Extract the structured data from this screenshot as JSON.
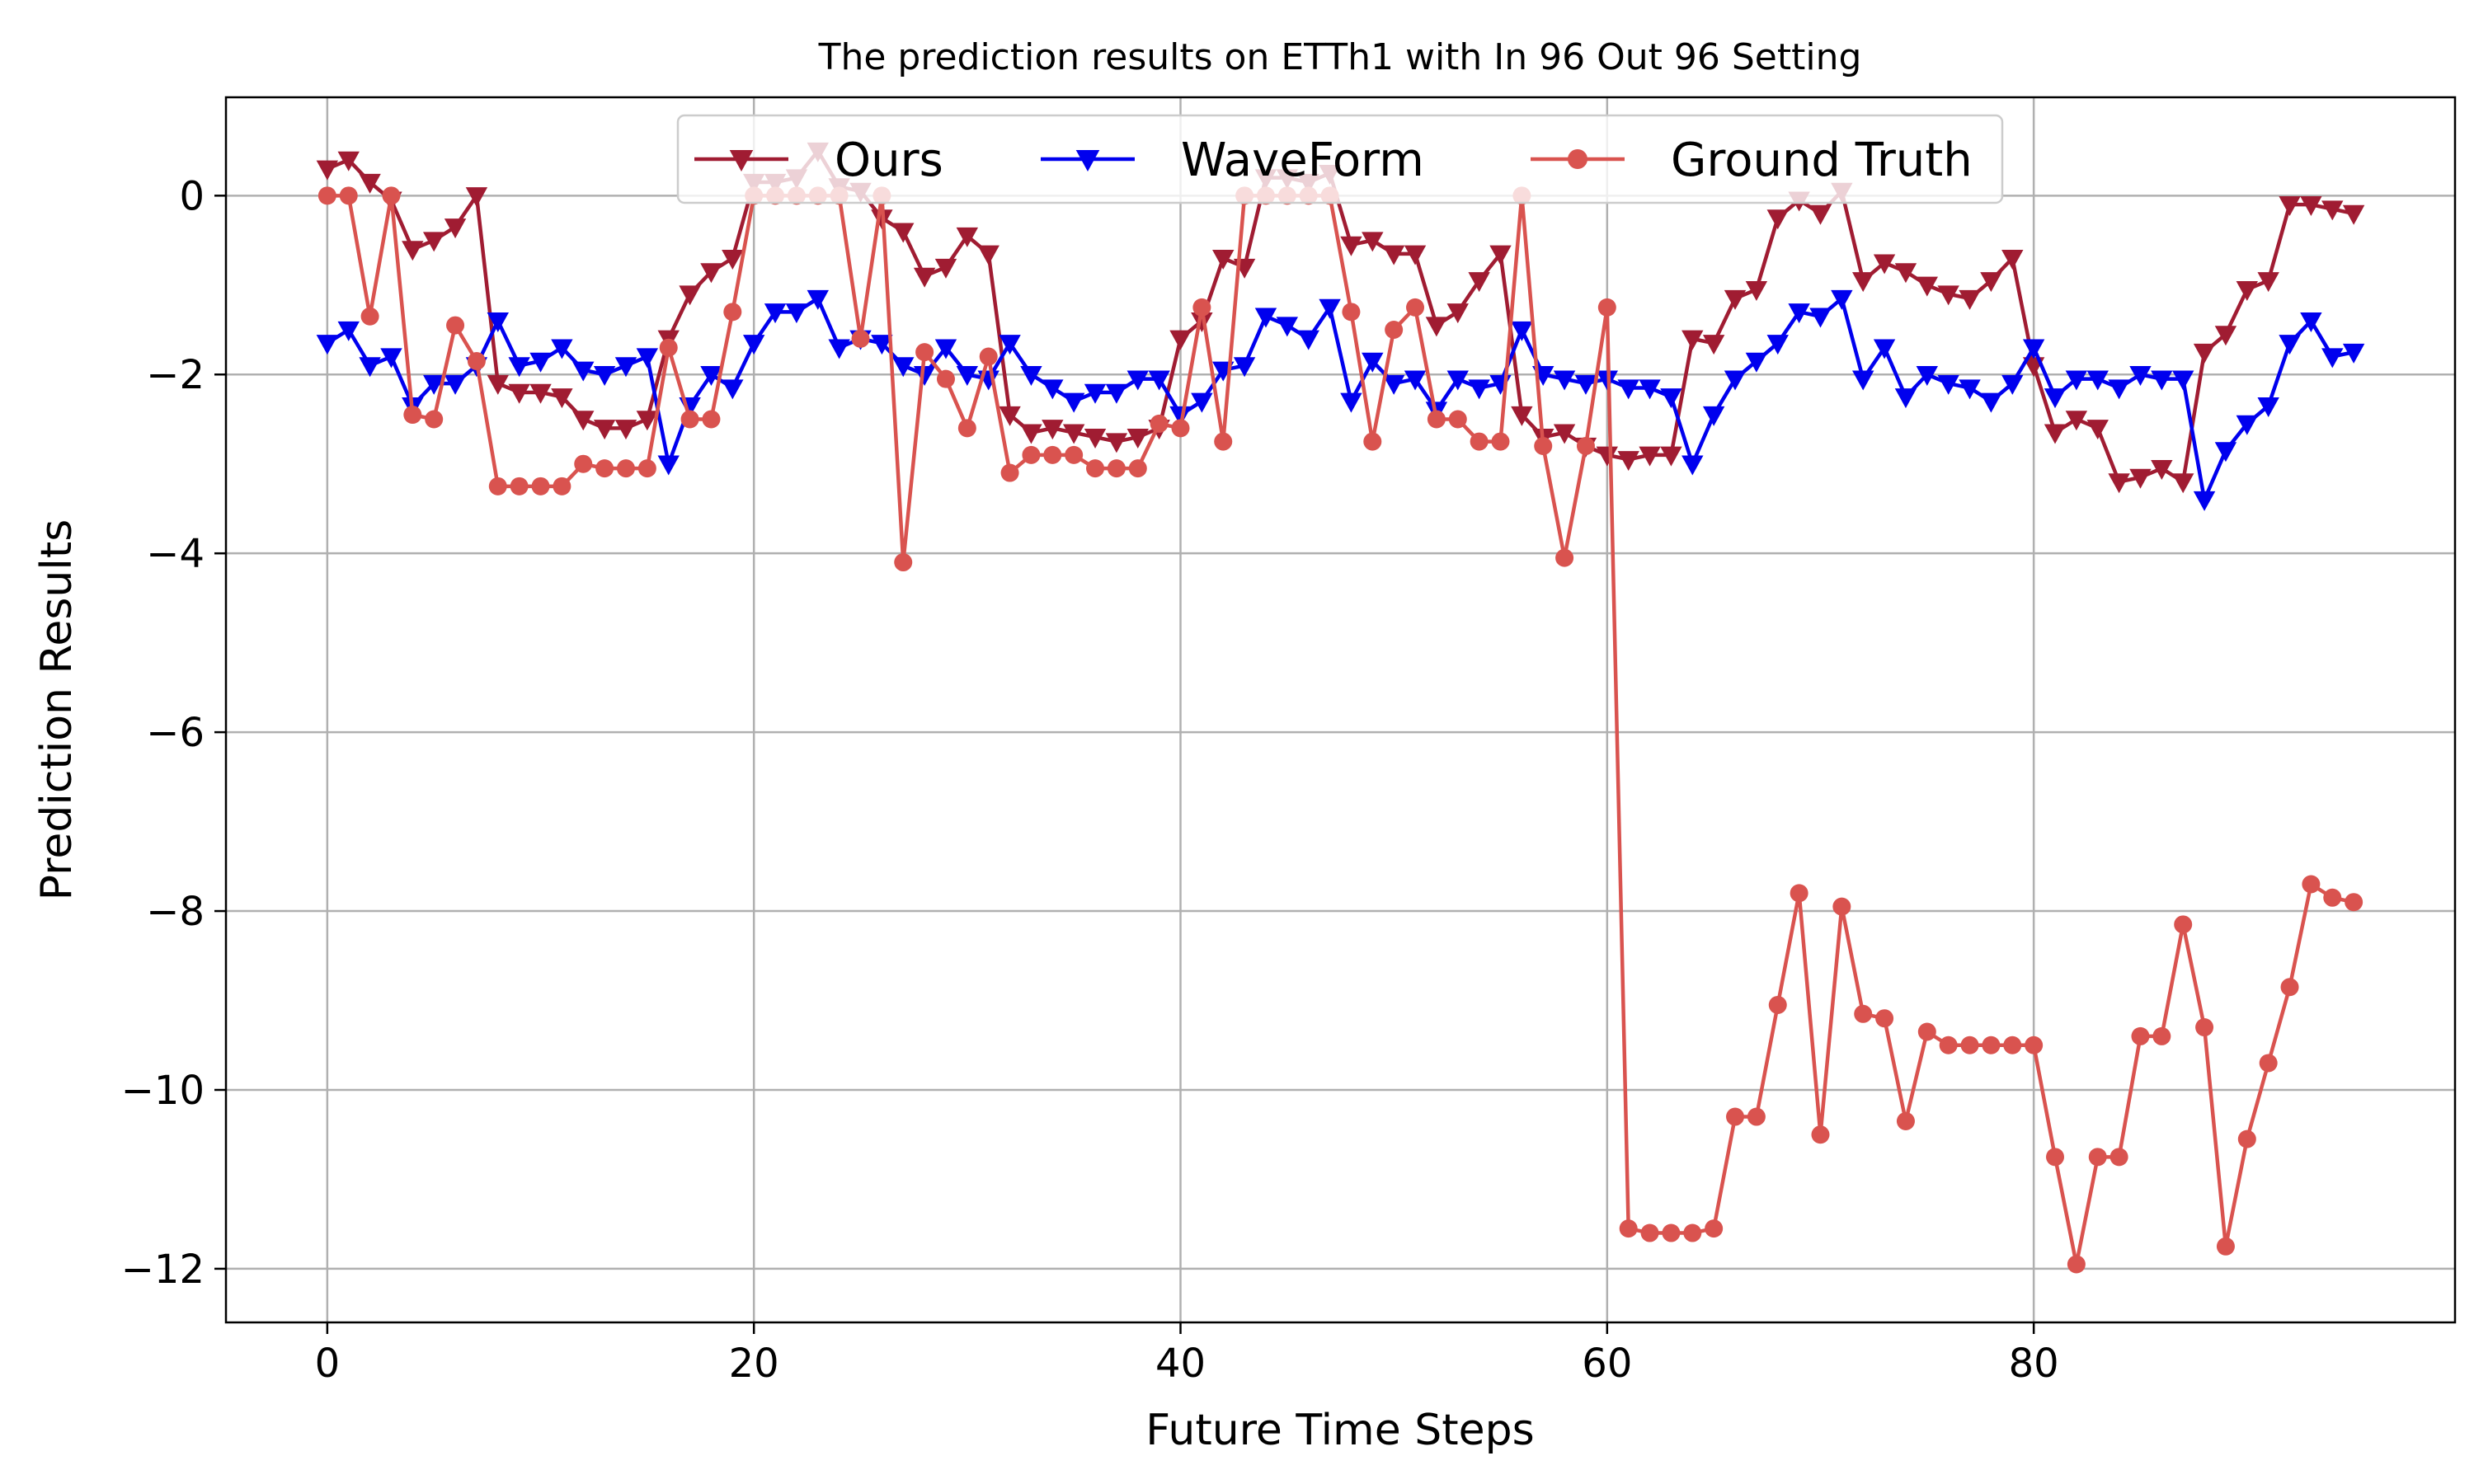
{
  "chart_data": {
    "type": "line",
    "title": "The prediction results on ETTh1 with In 96 Out 96 Setting",
    "xlabel": "Future Time Steps",
    "ylabel": "Prediction Results",
    "xlim": [
      -4.75,
      99.75
    ],
    "ylim": [
      -12.6,
      1.1
    ],
    "xticks": [
      0,
      20,
      40,
      60,
      80
    ],
    "yticks": [
      0,
      -2,
      -4,
      -6,
      -8,
      -10,
      -12
    ],
    "xtick_labels": [
      "0",
      "20",
      "40",
      "60",
      "80"
    ],
    "ytick_labels": [
      "0",
      "−2",
      "−4",
      "−6",
      "−8",
      "−10",
      "−12"
    ],
    "grid": true,
    "legend_position": "top-center",
    "series": [
      {
        "name": "Ours",
        "color": "#a01c32",
        "marker": "triangle-down",
        "values": [
          0.3,
          0.4,
          0.15,
          -0.05,
          -0.6,
          -0.5,
          -0.35,
          0.0,
          -2.1,
          -2.2,
          -2.2,
          -2.25,
          -2.5,
          -2.6,
          -2.6,
          -2.5,
          -1.6,
          -1.1,
          -0.85,
          -0.7,
          0.15,
          0.15,
          0.2,
          0.5,
          0.1,
          0.05,
          -0.25,
          -0.4,
          -0.9,
          -0.8,
          -0.45,
          -0.65,
          -2.45,
          -2.65,
          -2.6,
          -2.65,
          -2.7,
          -2.75,
          -2.7,
          -2.6,
          -1.6,
          -1.4,
          -0.7,
          -0.8,
          0.2,
          0.2,
          0.15,
          0.25,
          -0.55,
          -0.5,
          -0.65,
          -0.65,
          -1.45,
          -1.3,
          -0.95,
          -0.65,
          -2.45,
          -2.7,
          -2.65,
          -2.8,
          -2.9,
          -2.95,
          -2.9,
          -2.9,
          -1.6,
          -1.65,
          -1.15,
          -1.05,
          -0.25,
          -0.05,
          -0.2,
          0.05,
          -0.95,
          -0.75,
          -0.85,
          -1.0,
          -1.1,
          -1.15,
          -0.95,
          -0.7,
          -1.9,
          -2.65,
          -2.5,
          -2.6,
          -3.2,
          -3.15,
          -3.05,
          -3.2,
          -1.75,
          -1.55,
          -1.05,
          -0.95,
          -0.1,
          -0.1,
          -0.15,
          -0.2
        ]
      },
      {
        "name": "WaveForm",
        "color": "#0000ee",
        "marker": "triangle-down",
        "values": [
          -1.65,
          -1.5,
          -1.9,
          -1.8,
          -2.35,
          -2.1,
          -2.1,
          -1.9,
          -1.4,
          -1.9,
          -1.85,
          -1.7,
          -1.95,
          -2.0,
          -1.9,
          -1.8,
          -3.0,
          -2.35,
          -2.0,
          -2.15,
          -1.65,
          -1.3,
          -1.3,
          -1.15,
          -1.7,
          -1.6,
          -1.65,
          -1.9,
          -2.0,
          -1.7,
          -2.0,
          -2.05,
          -1.65,
          -2.0,
          -2.15,
          -2.3,
          -2.2,
          -2.2,
          -2.05,
          -2.05,
          -2.45,
          -2.3,
          -1.95,
          -1.9,
          -1.35,
          -1.45,
          -1.6,
          -1.25,
          -2.3,
          -1.85,
          -2.1,
          -2.05,
          -2.4,
          -2.05,
          -2.15,
          -2.1,
          -1.5,
          -2.0,
          -2.05,
          -2.1,
          -2.05,
          -2.15,
          -2.15,
          -2.25,
          -3.0,
          -2.45,
          -2.05,
          -1.85,
          -1.65,
          -1.3,
          -1.35,
          -1.15,
          -2.05,
          -1.7,
          -2.25,
          -2.0,
          -2.1,
          -2.15,
          -2.3,
          -2.1,
          -1.7,
          -2.25,
          -2.05,
          -2.05,
          -2.15,
          -2.0,
          -2.05,
          -2.05,
          -3.4,
          -2.85,
          -2.55,
          -2.35,
          -1.65,
          -1.4,
          -1.8,
          -1.75
        ]
      },
      {
        "name": "Ground Truth",
        "color": "#d9534f",
        "marker": "circle",
        "values": [
          0.0,
          0.0,
          -1.35,
          0.0,
          -2.45,
          -2.5,
          -1.45,
          -1.85,
          -3.25,
          -3.25,
          -3.25,
          -3.25,
          -3.0,
          -3.05,
          -3.05,
          -3.05,
          -1.7,
          -2.5,
          -2.5,
          -1.3,
          0.0,
          0.0,
          0.0,
          0.0,
          0.0,
          -1.6,
          0.0,
          -4.1,
          -1.75,
          -2.05,
          -2.6,
          -1.8,
          -3.1,
          -2.9,
          -2.9,
          -2.9,
          -3.05,
          -3.05,
          -3.05,
          -2.55,
          -2.6,
          -1.25,
          -2.75,
          0.0,
          0.0,
          0.0,
          0.0,
          0.0,
          -1.3,
          -2.75,
          -1.5,
          -1.25,
          -2.5,
          -2.5,
          -2.75,
          -2.75,
          0.0,
          -2.8,
          -4.05,
          -2.8,
          -1.25,
          -11.55,
          -11.6,
          -11.6,
          -11.6,
          -11.55,
          -10.3,
          -10.3,
          -9.05,
          -7.8,
          -10.5,
          -7.95,
          -9.15,
          -9.2,
          -10.35,
          -9.35,
          -9.5,
          -9.5,
          -9.5,
          -9.5,
          -9.5,
          -10.75,
          -11.95,
          -10.75,
          -10.75,
          -9.4,
          -9.4,
          -8.15,
          -9.3,
          -11.75,
          -10.55,
          -9.7,
          -8.85,
          -7.7,
          -7.85,
          -7.9
        ]
      }
    ]
  }
}
